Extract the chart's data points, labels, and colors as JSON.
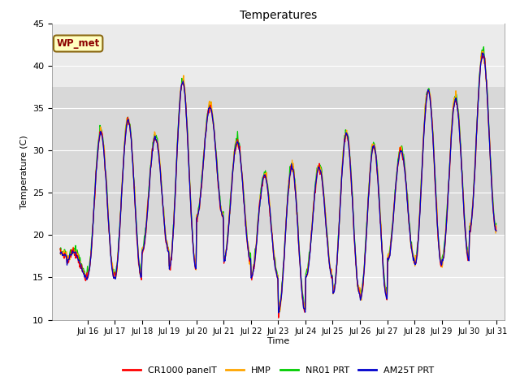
{
  "title": "Temperatures",
  "ylabel": "Temperature (C)",
  "xlabel": "Time",
  "ylim": [
    10,
    45
  ],
  "yticks": [
    10,
    15,
    20,
    25,
    30,
    35,
    40,
    45
  ],
  "xtick_labels": [
    "Jul 16",
    "Jul 17",
    "Jul 18",
    "Jul 19",
    "Jul 20",
    "Jul 21",
    "Jul 22",
    "Jul 23",
    "Jul 24",
    "Jul 25",
    "Jul 26",
    "Jul 27",
    "Jul 28",
    "Jul 29",
    "Jul 30",
    "Jul 31"
  ],
  "station_label": "WP_met",
  "legend": [
    {
      "label": "CR1000 panelT",
      "color": "#ff0000"
    },
    {
      "label": "HMP",
      "color": "#ffa500"
    },
    {
      "label": "NR01 PRT",
      "color": "#00cc00"
    },
    {
      "label": "AM25T PRT",
      "color": "#0000cc"
    }
  ],
  "shaded_band": [
    20,
    37.5
  ],
  "background_color": "#ffffff",
  "plot_bg_color": "#ebebeb"
}
